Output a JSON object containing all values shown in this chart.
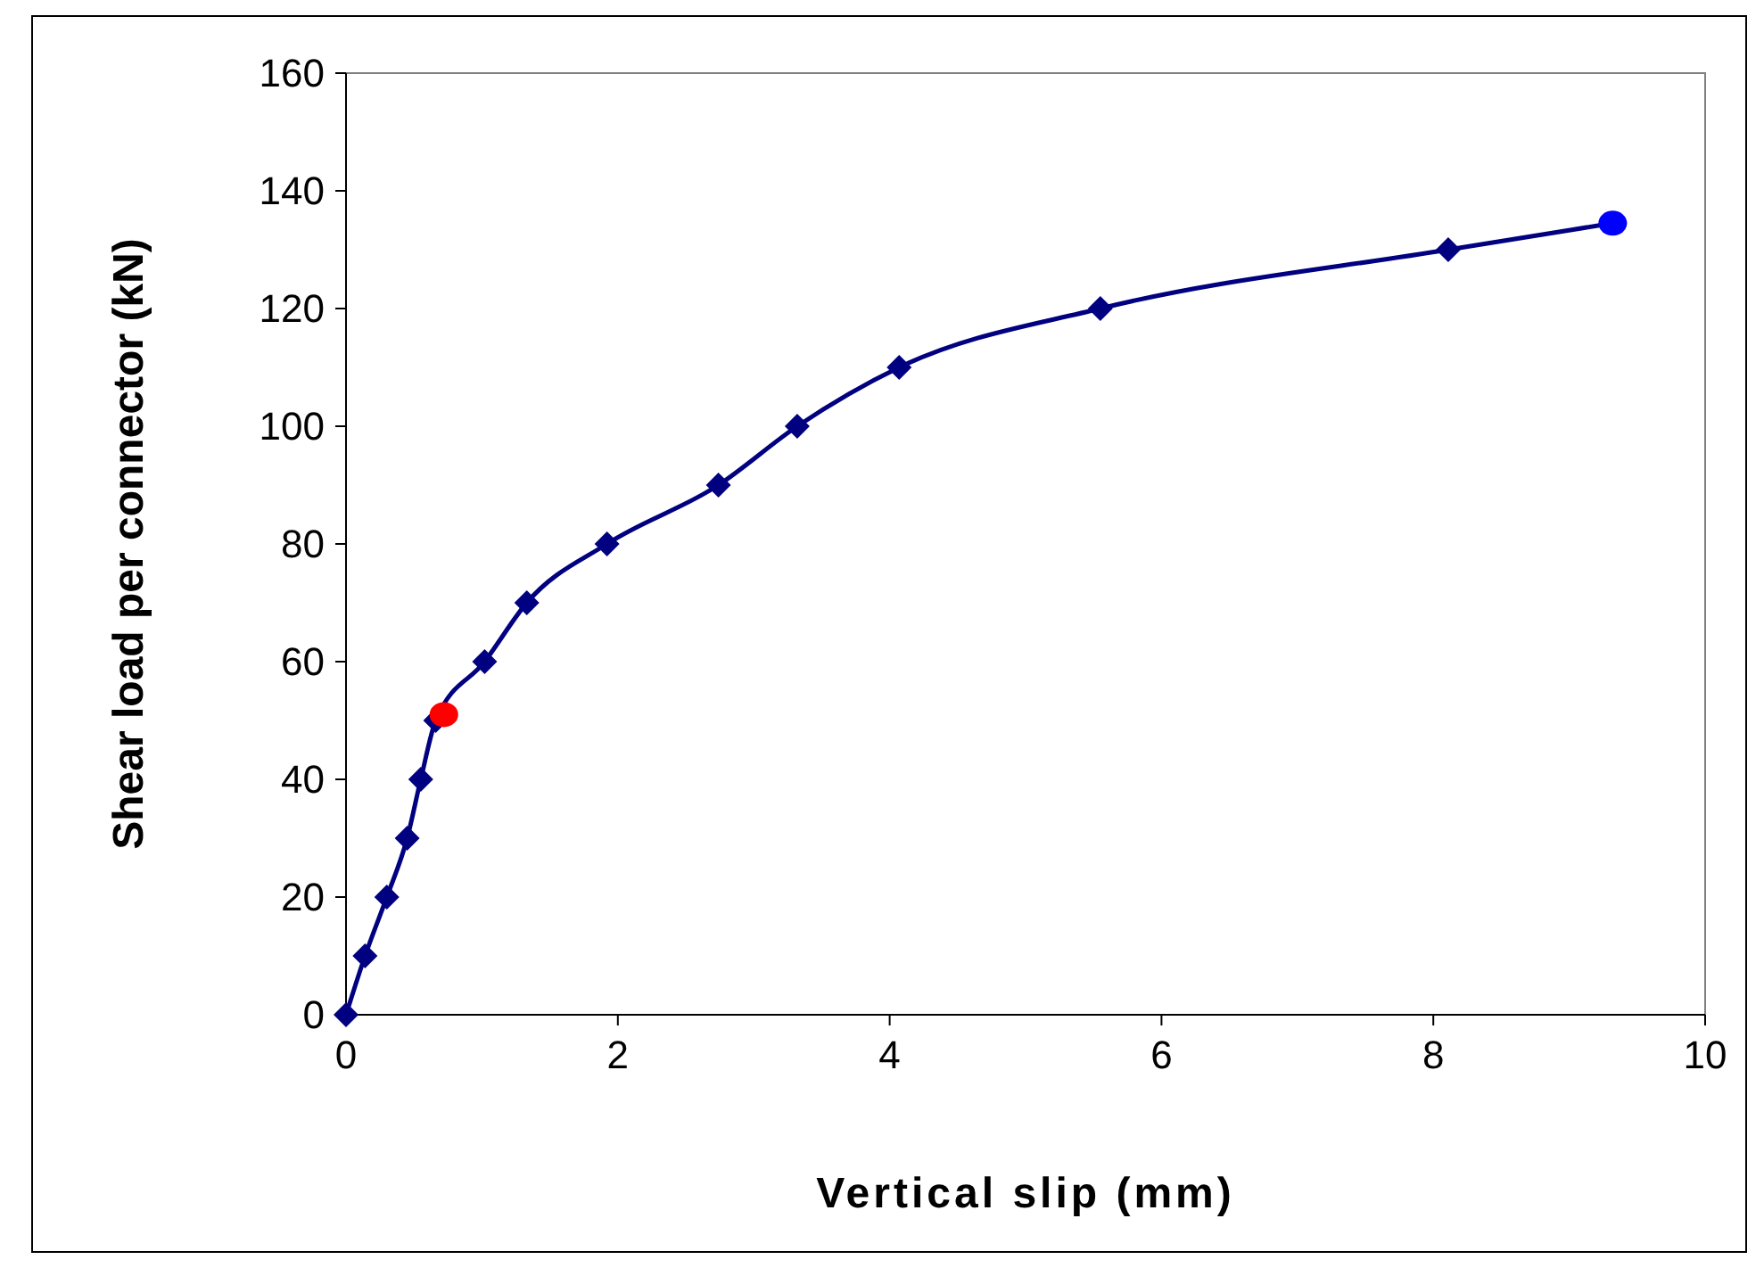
{
  "chart_data": {
    "type": "line",
    "xlabel": "Vertical slip (mm)",
    "ylabel": "Shear load per connector (kN)",
    "xlim": [
      0,
      10
    ],
    "xticks": [
      0,
      2,
      4,
      6,
      8,
      10
    ],
    "ylim": [
      0,
      160
    ],
    "yticks": [
      0,
      20,
      40,
      60,
      80,
      100,
      120,
      140,
      160
    ],
    "grid": false,
    "series": [
      {
        "color": "#000080",
        "marker": "none",
        "x": [
          0,
          0.14,
          0.3,
          0.45,
          0.55,
          0.66,
          1.02,
          1.33,
          1.92,
          2.74,
          3.32,
          4.07,
          5.55,
          8.11,
          9.32
        ],
        "values": [
          0,
          10,
          20,
          30,
          40,
          50,
          60,
          70,
          80,
          90,
          100,
          110,
          120,
          130,
          134.5
        ]
      },
      {
        "type": "scatter",
        "color": "#000080",
        "marker": "diamond",
        "x": [
          0,
          0.14,
          0.3,
          0.45,
          0.55,
          0.66,
          1.02,
          1.33,
          1.92,
          2.74,
          3.32,
          4.07,
          5.55,
          8.11
        ],
        "values": [
          0,
          10,
          20,
          30,
          40,
          50,
          60,
          70,
          80,
          90,
          100,
          110,
          120,
          130
        ]
      },
      {
        "type": "scatter",
        "color": "#ff0000",
        "marker": "circle",
        "x": [
          0.72
        ],
        "values": [
          51
        ]
      },
      {
        "type": "scatter",
        "color": "#0000ff",
        "marker": "circle",
        "x": [
          9.32
        ],
        "values": [
          134.5
        ]
      }
    ]
  }
}
